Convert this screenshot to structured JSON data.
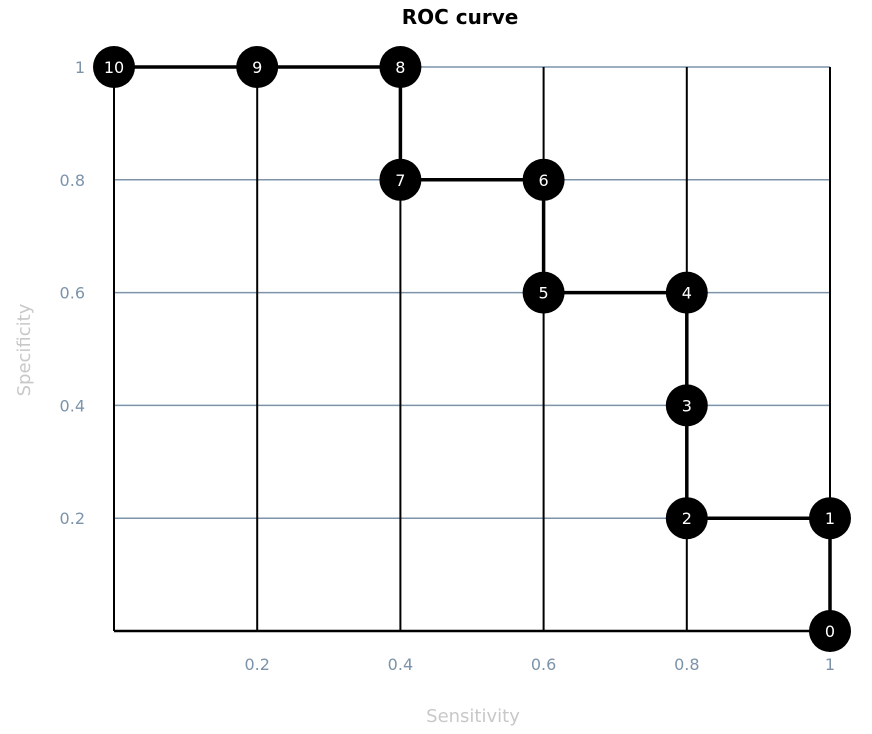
{
  "chart_data": {
    "type": "line",
    "title": "ROC curve",
    "xlabel": "Sensitivity",
    "ylabel": "Specificity",
    "xlim": [
      0,
      1
    ],
    "ylim": [
      0,
      1
    ],
    "x_ticks": [
      {
        "value": 0.2,
        "label": "0.2"
      },
      {
        "value": 0.4,
        "label": "0.4"
      },
      {
        "value": 0.6,
        "label": "0.6"
      },
      {
        "value": 0.8,
        "label": "0.8"
      },
      {
        "value": 1.0,
        "label": "1"
      }
    ],
    "y_ticks": [
      {
        "value": 0.2,
        "label": "0.2"
      },
      {
        "value": 0.4,
        "label": "0.4"
      },
      {
        "value": 0.6,
        "label": "0.6"
      },
      {
        "value": 0.8,
        "label": "0.8"
      },
      {
        "value": 1.0,
        "label": "1"
      }
    ],
    "points": [
      {
        "label": "0",
        "x": 1.0,
        "y": 0.0
      },
      {
        "label": "1",
        "x": 1.0,
        "y": 0.2
      },
      {
        "label": "2",
        "x": 0.8,
        "y": 0.2
      },
      {
        "label": "3",
        "x": 0.8,
        "y": 0.4
      },
      {
        "label": "4",
        "x": 0.8,
        "y": 0.6
      },
      {
        "label": "5",
        "x": 0.6,
        "y": 0.6
      },
      {
        "label": "6",
        "x": 0.6,
        "y": 0.8
      },
      {
        "label": "7",
        "x": 0.4,
        "y": 0.8
      },
      {
        "label": "8",
        "x": 0.4,
        "y": 1.0
      },
      {
        "label": "9",
        "x": 0.2,
        "y": 1.0
      },
      {
        "label": "10",
        "x": 0.0,
        "y": 1.0
      }
    ],
    "grid": true,
    "colors": {
      "line": "#000000",
      "marker": "#000000",
      "vertical_grid": "#000000",
      "horizontal_grid": "#7c93aa",
      "tick_label": "#7c93aa",
      "axis_label": "#c8c8c8"
    }
  }
}
